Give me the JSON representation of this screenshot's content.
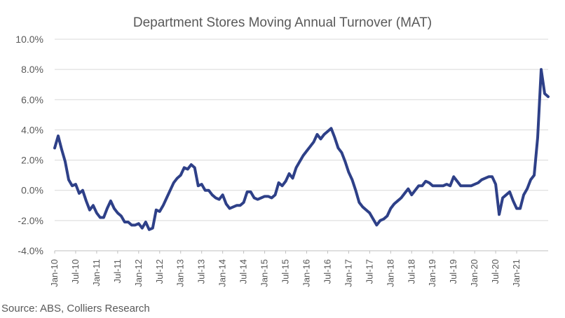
{
  "chart_data": {
    "type": "line",
    "title": "Department Stores Moving Annual Turnover (MAT)",
    "xlabel": "",
    "ylabel": "",
    "ylim": [
      -0.04,
      0.1
    ],
    "y_ticks": [
      "-4.0%",
      "-2.0%",
      "0.0%",
      "2.0%",
      "4.0%",
      "6.0%",
      "8.0%",
      "10.0%"
    ],
    "y_tick_values": [
      -0.04,
      -0.02,
      0.0,
      0.02,
      0.04,
      0.06,
      0.08,
      0.1
    ],
    "grid": true,
    "x_ticks": [
      "Jan-10",
      "Jul-10",
      "Jan-11",
      "Jul-11",
      "Jan-12",
      "Jul-12",
      "Jan-13",
      "Jul-13",
      "Jan-14",
      "Jul-14",
      "Jan-15",
      "Jul-15",
      "Jan-16",
      "Jul-16",
      "Jan-17",
      "Jul-17",
      "Jan-18",
      "Jul-18",
      "Jan-19",
      "Jul-19",
      "Jan-20",
      "Jul-20",
      "Jan-21"
    ],
    "x_start": "Jan-10",
    "x_end": "Jun-21",
    "series": [
      {
        "color": "#2e4088",
        "values": [
          0.028,
          0.036,
          0.027,
          0.019,
          0.007,
          0.003,
          0.004,
          -0.002,
          0.0,
          -0.007,
          -0.013,
          -0.01,
          -0.015,
          -0.018,
          -0.018,
          -0.012,
          -0.007,
          -0.012,
          -0.015,
          -0.017,
          -0.021,
          -0.021,
          -0.023,
          -0.023,
          -0.022,
          -0.025,
          -0.021,
          -0.026,
          -0.025,
          -0.013,
          -0.014,
          -0.01,
          -0.005,
          0.0,
          0.005,
          0.008,
          0.01,
          0.015,
          0.014,
          0.017,
          0.015,
          0.003,
          0.004,
          0.0,
          0.0,
          -0.003,
          -0.005,
          -0.006,
          -0.003,
          -0.009,
          -0.012,
          -0.011,
          -0.01,
          -0.01,
          -0.008,
          -0.001,
          -0.001,
          -0.005,
          -0.006,
          -0.005,
          -0.004,
          -0.004,
          -0.005,
          -0.003,
          0.005,
          0.003,
          0.006,
          0.011,
          0.008,
          0.015,
          0.019,
          0.023,
          0.026,
          0.029,
          0.032,
          0.037,
          0.034,
          0.037,
          0.039,
          0.041,
          0.035,
          0.028,
          0.025,
          0.019,
          0.012,
          0.007,
          0.0,
          -0.008,
          -0.011,
          -0.013,
          -0.015,
          -0.019,
          -0.023,
          -0.02,
          -0.019,
          -0.017,
          -0.012,
          -0.009,
          -0.007,
          -0.005,
          -0.002,
          0.001,
          -0.003,
          0.0,
          0.003,
          0.003,
          0.006,
          0.005,
          0.003,
          0.003,
          0.003,
          0.003,
          0.004,
          0.003,
          0.009,
          0.006,
          0.003,
          0.003,
          0.003,
          0.003,
          0.004,
          0.005,
          0.007,
          0.008,
          0.009,
          0.009,
          0.004,
          -0.016,
          -0.005,
          -0.003,
          -0.001,
          -0.007,
          -0.012,
          -0.012,
          -0.003,
          0.001,
          0.007,
          0.01,
          0.035,
          0.08,
          0.064,
          0.062
        ]
      }
    ]
  },
  "source": "Source: ABS, Colliers Research"
}
